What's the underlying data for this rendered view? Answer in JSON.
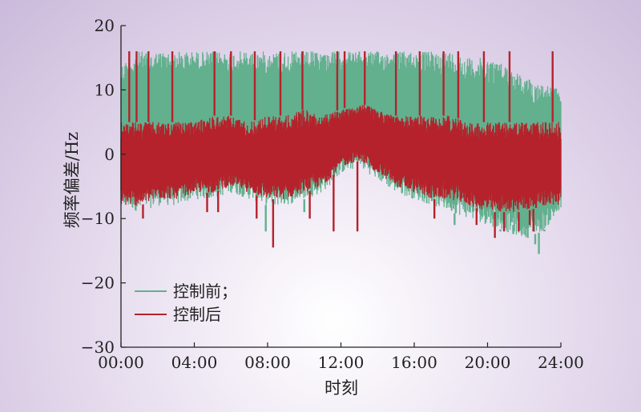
{
  "chart_data": {
    "type": "line",
    "xlabel": "时刻",
    "ylabel": "频率偏差/Hz",
    "x_ticks": [
      "00:00",
      "04:00",
      "08:00",
      "12:00",
      "16:00",
      "20:00",
      "24:00"
    ],
    "x_range_hours": [
      0,
      24
    ],
    "y_ticks": [
      "20",
      "10",
      "0",
      "−10",
      "−20",
      "−30"
    ],
    "y_tick_values": [
      20,
      10,
      0,
      -10,
      -20,
      -30
    ],
    "ylim": [
      -30,
      20
    ],
    "grid": false,
    "legend_position": "bottom-left",
    "series": [
      {
        "name": "控制前；",
        "color": "#62b08e",
        "hours": [
          0,
          1,
          2,
          3,
          4,
          5,
          6,
          7,
          8,
          9,
          10,
          11,
          12,
          13,
          14,
          15,
          16,
          17,
          18,
          19,
          20,
          21,
          22,
          23,
          24
        ],
        "upper": [
          14,
          16,
          16,
          16,
          16,
          16,
          16,
          16,
          16,
          16,
          16,
          16,
          16,
          16,
          16,
          16,
          16,
          16,
          16,
          15,
          15,
          14,
          12,
          11,
          10
        ],
        "lower": [
          -8,
          -9,
          -8,
          -8,
          -7,
          -7,
          -6,
          -7,
          -8,
          -8,
          -7,
          -6,
          -3,
          -2,
          -4,
          -6,
          -7,
          -8,
          -9,
          -10,
          -11,
          -12,
          -13,
          -12,
          -9
        ],
        "spike_hours": [
          7.9,
          10.0,
          18.2,
          20.7,
          21.1,
          21.4,
          22.2,
          22.6,
          22.8,
          23.1
        ],
        "spike_values": [
          -12,
          -9,
          -11,
          -12,
          -12,
          -11,
          -13,
          -14,
          -15.5,
          -12
        ]
      },
      {
        "name": "控制后",
        "color": "#b5222b",
        "hours": [
          0,
          1,
          2,
          3,
          4,
          5,
          6,
          7,
          8,
          9,
          10,
          11,
          12,
          13,
          14,
          15,
          16,
          17,
          18,
          19,
          20,
          21,
          22,
          23,
          24
        ],
        "upper": [
          5,
          5,
          5,
          5,
          5,
          6,
          6,
          5,
          6,
          6,
          7,
          6,
          7,
          8,
          7,
          6,
          6,
          6,
          6,
          5,
          5,
          5,
          5,
          5,
          5
        ],
        "lower": [
          -8,
          -8,
          -7,
          -7,
          -6,
          -6,
          -5,
          -6,
          -7,
          -7,
          -6,
          -5,
          -2,
          -1,
          -3,
          -5,
          -6,
          -7,
          -7,
          -8,
          -9,
          -9,
          -9,
          -8,
          -8
        ],
        "spike_hours": [
          0.45,
          0.85,
          1.5,
          2.8,
          5.1,
          6.0,
          7.3,
          8.7,
          9.9,
          11.8,
          12.2,
          13.3,
          15.0,
          16.3,
          17.6,
          18.4,
          19.8,
          21.2,
          23.55
        ],
        "spike_values": [
          16,
          16,
          16,
          16,
          16,
          16,
          16,
          16,
          16,
          16,
          16,
          16,
          16,
          16,
          16,
          16,
          16,
          16,
          16
        ],
        "spike_low_hours": [
          1.2,
          4.7,
          5.3,
          7.4,
          8.3,
          10.3,
          11.6,
          12.9,
          17.1,
          19.4,
          20.4,
          20.9,
          21.7,
          22.3,
          22.5
        ],
        "spike_low_values": [
          -10,
          -9,
          -9,
          -10,
          -14.5,
          -10,
          -12,
          -12,
          -10,
          -11,
          -13,
          -12,
          -12,
          -11,
          -12
        ]
      }
    ]
  }
}
